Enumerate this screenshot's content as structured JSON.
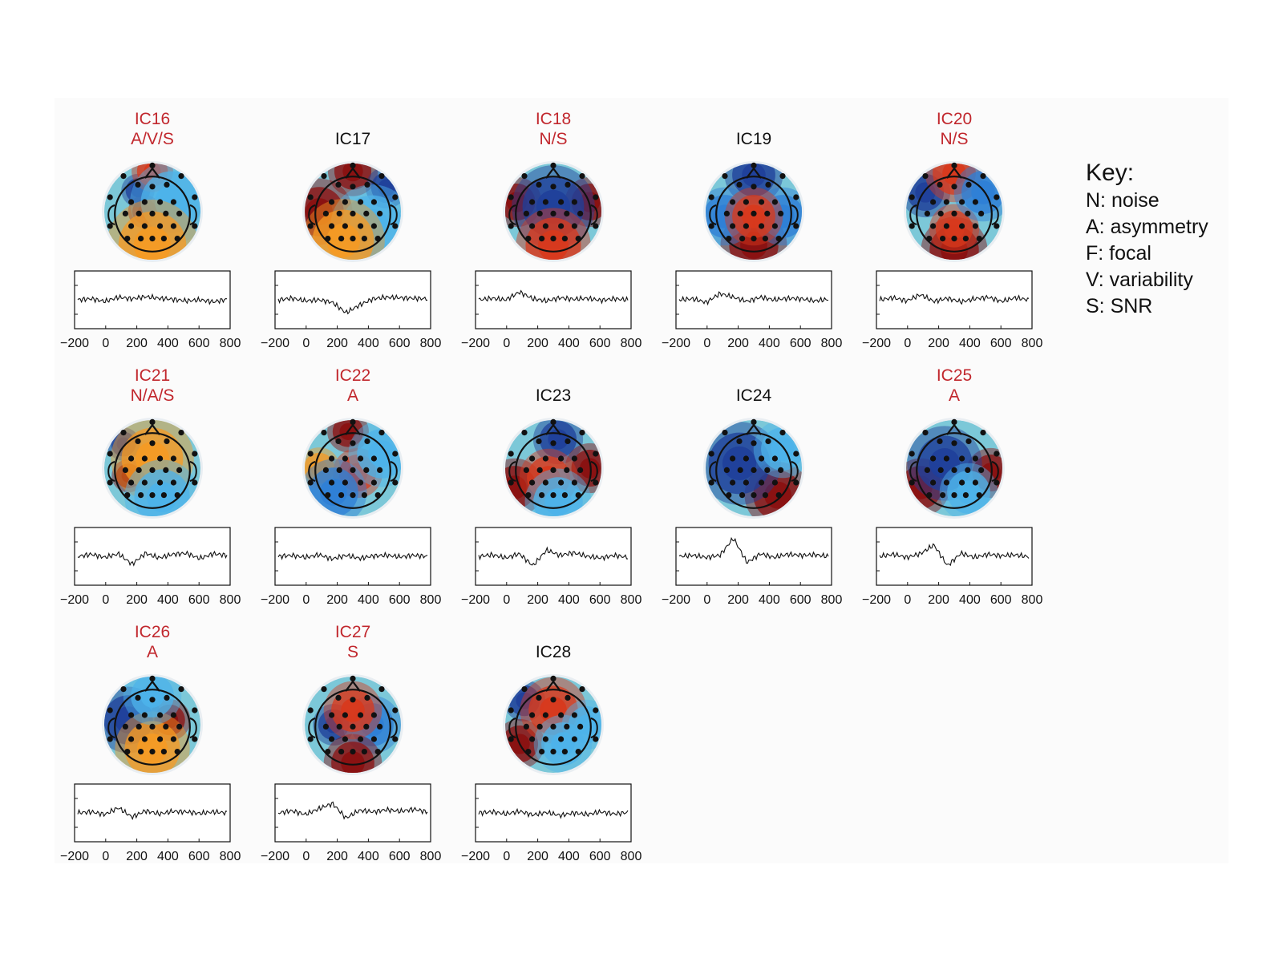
{
  "colors": {
    "flag": "#c1272d",
    "normal": "#111111",
    "colormap": [
      "#1f3f9a",
      "#2f7fd6",
      "#4db3ea",
      "#7cc8d8",
      "#f2e63c",
      "#f59a23",
      "#d8391c",
      "#8b1010"
    ]
  },
  "key": {
    "title": "Key:",
    "items": [
      "N: noise",
      "A: asymmetry",
      "F: focal",
      "V: variability",
      "S: SNR"
    ]
  },
  "chart_data": {
    "type": "line",
    "x_ticks": [
      "−200",
      "0",
      "200",
      "400",
      "600",
      "800"
    ],
    "x_range": [
      -200,
      800
    ],
    "components": [
      {
        "name": "IC16",
        "flag": "A/V/S",
        "flagged": true,
        "waveform": [
          0,
          0.02,
          -0.03,
          0.05,
          0.02,
          0.06,
          0.03,
          0.01,
          -0.02,
          0.0,
          -0.04,
          0.01
        ],
        "topo_blobs": [
          {
            "x": 0.42,
            "y": 0.5,
            "v": 1.0,
            "s": 0.08
          },
          {
            "x": 0.35,
            "y": 0.28,
            "v": -1.0,
            "s": 0.08
          },
          {
            "x": 0.5,
            "y": 0.08,
            "v": 0.8,
            "s": 0.1
          },
          {
            "x": 0.7,
            "y": 0.4,
            "v": -0.4,
            "s": 0.2
          },
          {
            "x": 0.5,
            "y": 0.85,
            "v": 0.4,
            "s": 0.22
          }
        ]
      },
      {
        "name": "IC17",
        "flag": "",
        "flagged": false,
        "waveform": [
          0,
          0.03,
          -0.02,
          0.0,
          -0.05,
          -0.25,
          -0.1,
          0.02,
          0.05,
          0.04,
          0.03,
          0.02
        ],
        "topo_blobs": [
          {
            "x": 0.5,
            "y": 0.08,
            "v": 1.0,
            "s": 0.12
          },
          {
            "x": 0.15,
            "y": 0.5,
            "v": 0.9,
            "s": 0.16
          },
          {
            "x": 0.85,
            "y": 0.25,
            "v": -1.0,
            "s": 0.1
          },
          {
            "x": 0.7,
            "y": 0.65,
            "v": -0.5,
            "s": 0.2
          },
          {
            "x": 0.4,
            "y": 0.8,
            "v": 0.3,
            "s": 0.2
          }
        ]
      },
      {
        "name": "IC18",
        "flag": "N/S",
        "flagged": true,
        "waveform": [
          0,
          0.03,
          0.0,
          0.15,
          0.02,
          -0.02,
          0.04,
          0.01,
          0.03,
          -0.01,
          0.02,
          0.0
        ],
        "topo_blobs": [
          {
            "x": 0.12,
            "y": 0.4,
            "v": 0.9,
            "s": 0.12
          },
          {
            "x": 0.88,
            "y": 0.4,
            "v": 0.9,
            "s": 0.12
          },
          {
            "x": 0.5,
            "y": 0.45,
            "v": -0.9,
            "s": 0.2
          },
          {
            "x": 0.5,
            "y": 0.85,
            "v": 0.6,
            "s": 0.18
          }
        ]
      },
      {
        "name": "IC19",
        "flag": "",
        "flagged": false,
        "waveform": [
          0,
          0.02,
          -0.05,
          0.12,
          0.05,
          -0.03,
          0.05,
          0.0,
          0.03,
          0.02,
          -0.02,
          0.01
        ],
        "topo_blobs": [
          {
            "x": 0.5,
            "y": 0.12,
            "v": -1.0,
            "s": 0.14
          },
          {
            "x": 0.5,
            "y": 0.85,
            "v": 1.0,
            "s": 0.16
          },
          {
            "x": 0.2,
            "y": 0.55,
            "v": -0.6,
            "s": 0.14
          },
          {
            "x": 0.8,
            "y": 0.55,
            "v": -0.6,
            "s": 0.14
          },
          {
            "x": 0.5,
            "y": 0.55,
            "v": 0.6,
            "s": 0.14
          }
        ]
      },
      {
        "name": "IC20",
        "flag": "N/S",
        "flagged": true,
        "waveform": [
          0,
          0.04,
          -0.02,
          0.1,
          -0.03,
          0.03,
          -0.04,
          0.02,
          0.05,
          -0.03,
          0.04,
          0.0
        ],
        "topo_blobs": [
          {
            "x": 0.2,
            "y": 0.3,
            "v": -1.0,
            "s": 0.12
          },
          {
            "x": 0.5,
            "y": 0.1,
            "v": 0.7,
            "s": 0.14
          },
          {
            "x": 0.5,
            "y": 0.9,
            "v": 1.0,
            "s": 0.16
          },
          {
            "x": 0.5,
            "y": 0.68,
            "v": 0.7,
            "s": 0.12
          },
          {
            "x": 0.8,
            "y": 0.3,
            "v": -0.6,
            "s": 0.14
          }
        ]
      },
      {
        "name": "IC21",
        "flag": "N/A/S",
        "flagged": true,
        "waveform": [
          0,
          0.04,
          -0.02,
          0.05,
          -0.15,
          0.06,
          -0.03,
          0.04,
          0.06,
          -0.04,
          0.05,
          0.02
        ],
        "topo_blobs": [
          {
            "x": 0.2,
            "y": 0.25,
            "v": -1.0,
            "s": 0.08
          },
          {
            "x": 0.25,
            "y": 0.58,
            "v": 1.0,
            "s": 0.08
          },
          {
            "x": 0.5,
            "y": 0.4,
            "v": 0.4,
            "s": 0.2
          },
          {
            "x": 0.6,
            "y": 0.8,
            "v": -0.5,
            "s": 0.18
          }
        ]
      },
      {
        "name": "IC22",
        "flag": "A",
        "flagged": true,
        "waveform": [
          0,
          0.02,
          -0.02,
          0.03,
          -0.05,
          0.02,
          -0.04,
          0.01,
          0.02,
          -0.01,
          0.02,
          0.0
        ],
        "topo_blobs": [
          {
            "x": 0.45,
            "y": 0.12,
            "v": 1.0,
            "s": 0.1
          },
          {
            "x": 0.55,
            "y": 0.55,
            "v": 0.7,
            "s": 0.12
          },
          {
            "x": 0.15,
            "y": 0.5,
            "v": 0.5,
            "s": 0.1
          },
          {
            "x": 0.3,
            "y": 0.75,
            "v": -0.6,
            "s": 0.16
          },
          {
            "x": 0.8,
            "y": 0.35,
            "v": -0.5,
            "s": 0.16
          }
        ]
      },
      {
        "name": "IC23",
        "flag": "",
        "flagged": false,
        "waveform": [
          0,
          0.03,
          -0.03,
          0.05,
          -0.18,
          0.12,
          0.02,
          0.07,
          0.0,
          -0.03,
          0.02,
          -0.02
        ],
        "topo_blobs": [
          {
            "x": 0.55,
            "y": 0.2,
            "v": -1.0,
            "s": 0.12
          },
          {
            "x": 0.1,
            "y": 0.7,
            "v": 1.0,
            "s": 0.14
          },
          {
            "x": 0.88,
            "y": 0.5,
            "v": 0.9,
            "s": 0.12
          },
          {
            "x": 0.45,
            "y": 0.6,
            "v": 0.6,
            "s": 0.14
          },
          {
            "x": 0.55,
            "y": 0.85,
            "v": -0.4,
            "s": 0.16
          }
        ]
      },
      {
        "name": "IC24",
        "flag": "",
        "flagged": false,
        "waveform": [
          0,
          0.02,
          -0.02,
          0.02,
          0.35,
          -0.12,
          0.05,
          -0.02,
          0.04,
          0.02,
          0.03,
          0.0
        ],
        "topo_blobs": [
          {
            "x": 0.75,
            "y": 0.78,
            "v": 1.0,
            "s": 0.16
          },
          {
            "x": 0.35,
            "y": 0.45,
            "v": -1.0,
            "s": 0.2
          },
          {
            "x": 0.8,
            "y": 0.3,
            "v": -0.4,
            "s": 0.14
          }
        ]
      },
      {
        "name": "IC25",
        "flag": "A",
        "flagged": true,
        "waveform": [
          0,
          0.04,
          -0.02,
          0.05,
          0.22,
          -0.18,
          0.06,
          -0.02,
          0.04,
          0.01,
          0.03,
          -0.01
        ],
        "topo_blobs": [
          {
            "x": 0.15,
            "y": 0.7,
            "v": 1.0,
            "s": 0.14
          },
          {
            "x": 0.88,
            "y": 0.55,
            "v": 1.0,
            "s": 0.12
          },
          {
            "x": 0.4,
            "y": 0.45,
            "v": -1.0,
            "s": 0.18
          },
          {
            "x": 0.65,
            "y": 0.75,
            "v": -0.5,
            "s": 0.14
          }
        ]
      },
      {
        "name": "IC26",
        "flag": "A",
        "flagged": true,
        "waveform": [
          0,
          0.02,
          -0.03,
          0.1,
          -0.08,
          0.04,
          -0.02,
          0.03,
          0.02,
          -0.01,
          0.02,
          0.0
        ],
        "topo_blobs": [
          {
            "x": 0.68,
            "y": 0.45,
            "v": 1.0,
            "s": 0.1
          },
          {
            "x": 0.25,
            "y": 0.45,
            "v": -0.9,
            "s": 0.16
          },
          {
            "x": 0.5,
            "y": 0.75,
            "v": 0.4,
            "s": 0.18
          },
          {
            "x": 0.5,
            "y": 0.2,
            "v": -0.4,
            "s": 0.14
          }
        ]
      },
      {
        "name": "IC27",
        "flag": "S",
        "flagged": true,
        "waveform": [
          0,
          0.04,
          -0.03,
          0.08,
          0.18,
          -0.1,
          0.05,
          0.02,
          0.06,
          0.03,
          0.07,
          0.02
        ],
        "topo_blobs": [
          {
            "x": 0.3,
            "y": 0.5,
            "v": -1.0,
            "s": 0.1
          },
          {
            "x": 0.7,
            "y": 0.5,
            "v": -0.6,
            "s": 0.14
          },
          {
            "x": 0.5,
            "y": 0.9,
            "v": 1.0,
            "s": 0.14
          },
          {
            "x": 0.5,
            "y": 0.35,
            "v": 0.6,
            "s": 0.14
          }
        ]
      },
      {
        "name": "IC28",
        "flag": "",
        "flagged": false,
        "waveform": [
          0,
          0.02,
          -0.02,
          0.03,
          -0.04,
          0.01,
          -0.05,
          0.0,
          -0.03,
          0.02,
          -0.02,
          0.01
        ],
        "topo_blobs": [
          {
            "x": 0.2,
            "y": 0.25,
            "v": -1.0,
            "s": 0.1
          },
          {
            "x": 0.15,
            "y": 0.7,
            "v": 1.0,
            "s": 0.12
          },
          {
            "x": 0.5,
            "y": 0.35,
            "v": 0.6,
            "s": 0.16
          },
          {
            "x": 0.6,
            "y": 0.7,
            "v": -0.5,
            "s": 0.14
          },
          {
            "x": 0.85,
            "y": 0.5,
            "v": -0.5,
            "s": 0.12
          }
        ]
      }
    ]
  }
}
